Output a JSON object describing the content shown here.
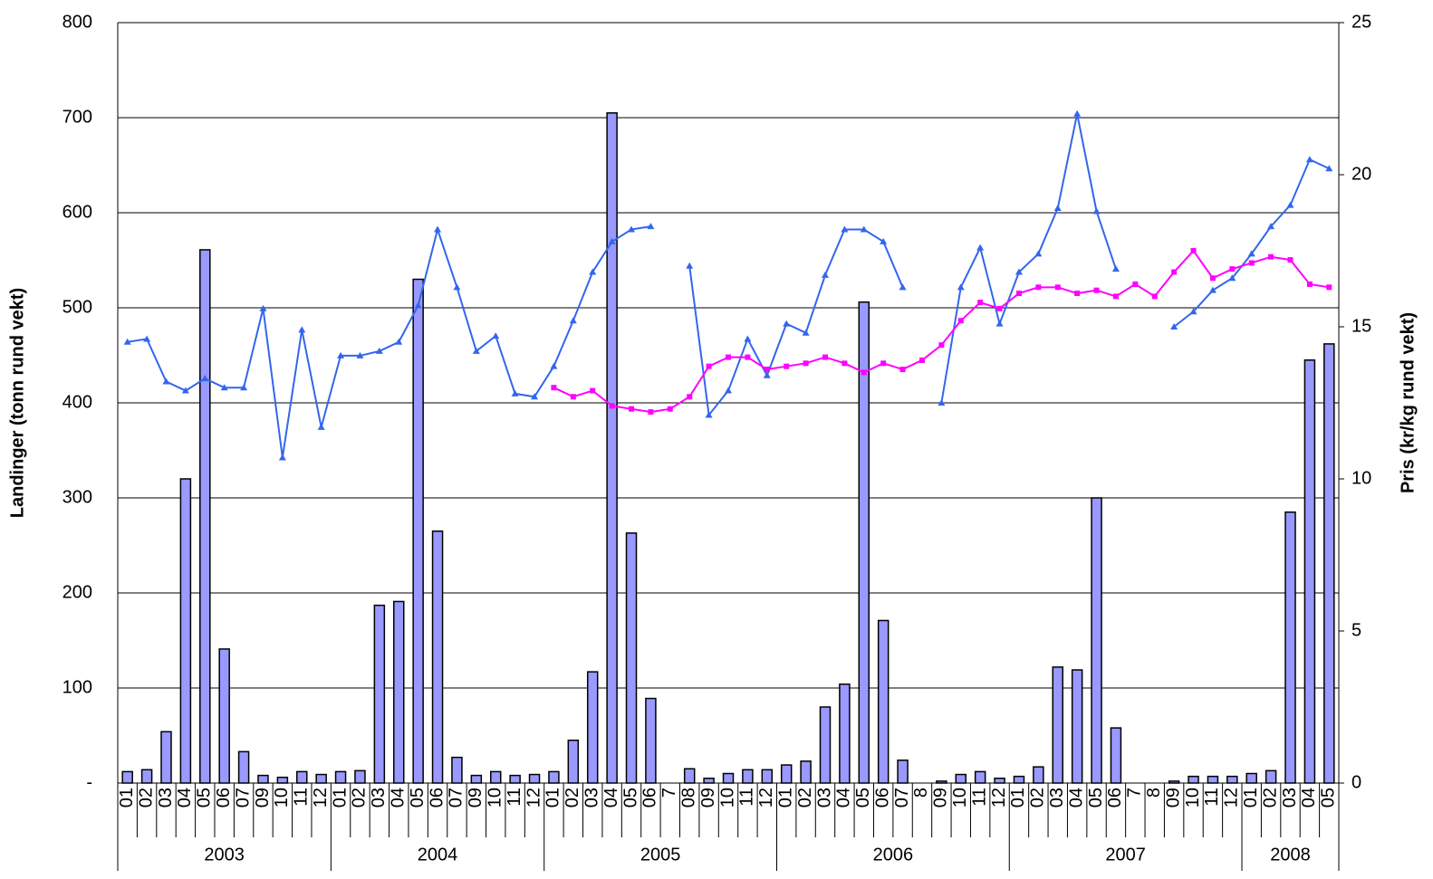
{
  "chart_data": {
    "type": "bar",
    "y_label": "Landinger (tonn rund vekt)",
    "y2_label": "Pris (kr/kg rund vekt)",
    "category_groups": [
      {
        "label": "2003",
        "categories": [
          "01",
          "02",
          "03",
          "04",
          "05",
          "06",
          "07",
          "09",
          "10",
          "11",
          "12"
        ]
      },
      {
        "label": "2004",
        "categories": [
          "01",
          "02",
          "03",
          "04",
          "05",
          "06",
          "07",
          "09",
          "10",
          "11",
          "12"
        ]
      },
      {
        "label": "2005",
        "categories": [
          "01",
          "02",
          "03",
          "04",
          "05",
          "06",
          "7",
          "08",
          "09",
          "10",
          "11",
          "12"
        ]
      },
      {
        "label": "2006",
        "categories": [
          "01",
          "02",
          "03",
          "04",
          "05",
          "06",
          "07",
          "8",
          "09",
          "10",
          "11",
          "12"
        ]
      },
      {
        "label": "2007",
        "categories": [
          "01",
          "02",
          "03",
          "04",
          "05",
          "06",
          "7",
          "8",
          "09",
          "10",
          "11",
          "12"
        ]
      },
      {
        "label": "2008",
        "categories": [
          "01",
          "02",
          "03",
          "04",
          "05"
        ]
      }
    ],
    "ylim": [
      0,
      800
    ],
    "yticks": [
      {
        "value": 0,
        "label": "-"
      },
      100,
      200,
      300,
      400,
      500,
      600,
      700,
      800
    ],
    "y2lim": [
      0,
      25
    ],
    "y2ticks": [
      0,
      5,
      10,
      15,
      20,
      25
    ],
    "grid": true,
    "series": [
      {
        "type": "bar",
        "color": "#9999ff",
        "values": [
          12,
          14,
          54,
          320,
          561,
          141,
          33,
          8,
          6,
          12,
          9,
          12,
          13,
          187,
          191,
          530,
          265,
          27,
          8,
          12,
          8,
          9,
          12,
          45,
          117,
          705,
          263,
          89,
          null,
          15,
          5,
          10,
          14,
          14,
          19,
          23,
          80,
          104,
          506,
          171,
          24,
          null,
          2,
          9,
          12,
          5,
          7,
          17,
          122,
          119,
          300,
          58,
          null,
          null,
          2,
          7,
          7,
          7,
          10,
          13,
          285,
          445,
          462
        ]
      },
      {
        "type": "line",
        "axis": "y2",
        "color": "#3366ee",
        "marker": "triangle",
        "values": [
          14.5,
          14.6,
          13.2,
          12.9,
          13.3,
          13.0,
          13.0,
          15.6,
          10.7,
          14.9,
          11.7,
          14.05,
          14.05,
          14.2,
          14.5,
          15.7,
          18.2,
          16.3,
          14.2,
          14.7,
          12.8,
          12.7,
          13.7,
          15.2,
          16.8,
          17.8,
          18.2,
          18.3,
          null,
          17.0,
          12.1,
          12.9,
          14.6,
          13.4,
          15.1,
          14.8,
          16.7,
          18.2,
          18.2,
          17.8,
          16.3,
          null,
          12.5,
          16.3,
          17.6,
          15.1,
          16.8,
          17.4,
          18.9,
          22.0,
          18.8,
          16.9,
          null,
          null,
          15.0,
          15.5,
          16.2,
          16.6,
          17.4,
          18.3,
          19.0,
          20.5,
          20.2
        ]
      },
      {
        "type": "line",
        "axis": "y2",
        "color": "#ff00ff",
        "marker": "square",
        "values": [
          null,
          null,
          null,
          null,
          null,
          null,
          null,
          null,
          null,
          null,
          null,
          null,
          null,
          null,
          null,
          null,
          null,
          null,
          null,
          null,
          null,
          null,
          13.0,
          12.7,
          12.9,
          12.4,
          12.3,
          12.2,
          12.3,
          12.7,
          13.7,
          14.0,
          14.0,
          13.6,
          13.7,
          13.8,
          14.0,
          13.8,
          13.5,
          13.8,
          13.6,
          13.9,
          14.4,
          15.2,
          15.8,
          15.6,
          16.1,
          16.3,
          16.3,
          16.1,
          16.2,
          16.0,
          16.4,
          16.0,
          16.8,
          17.5,
          16.6,
          16.9,
          17.1,
          17.3,
          17.2,
          16.4,
          16.3
        ]
      }
    ]
  }
}
